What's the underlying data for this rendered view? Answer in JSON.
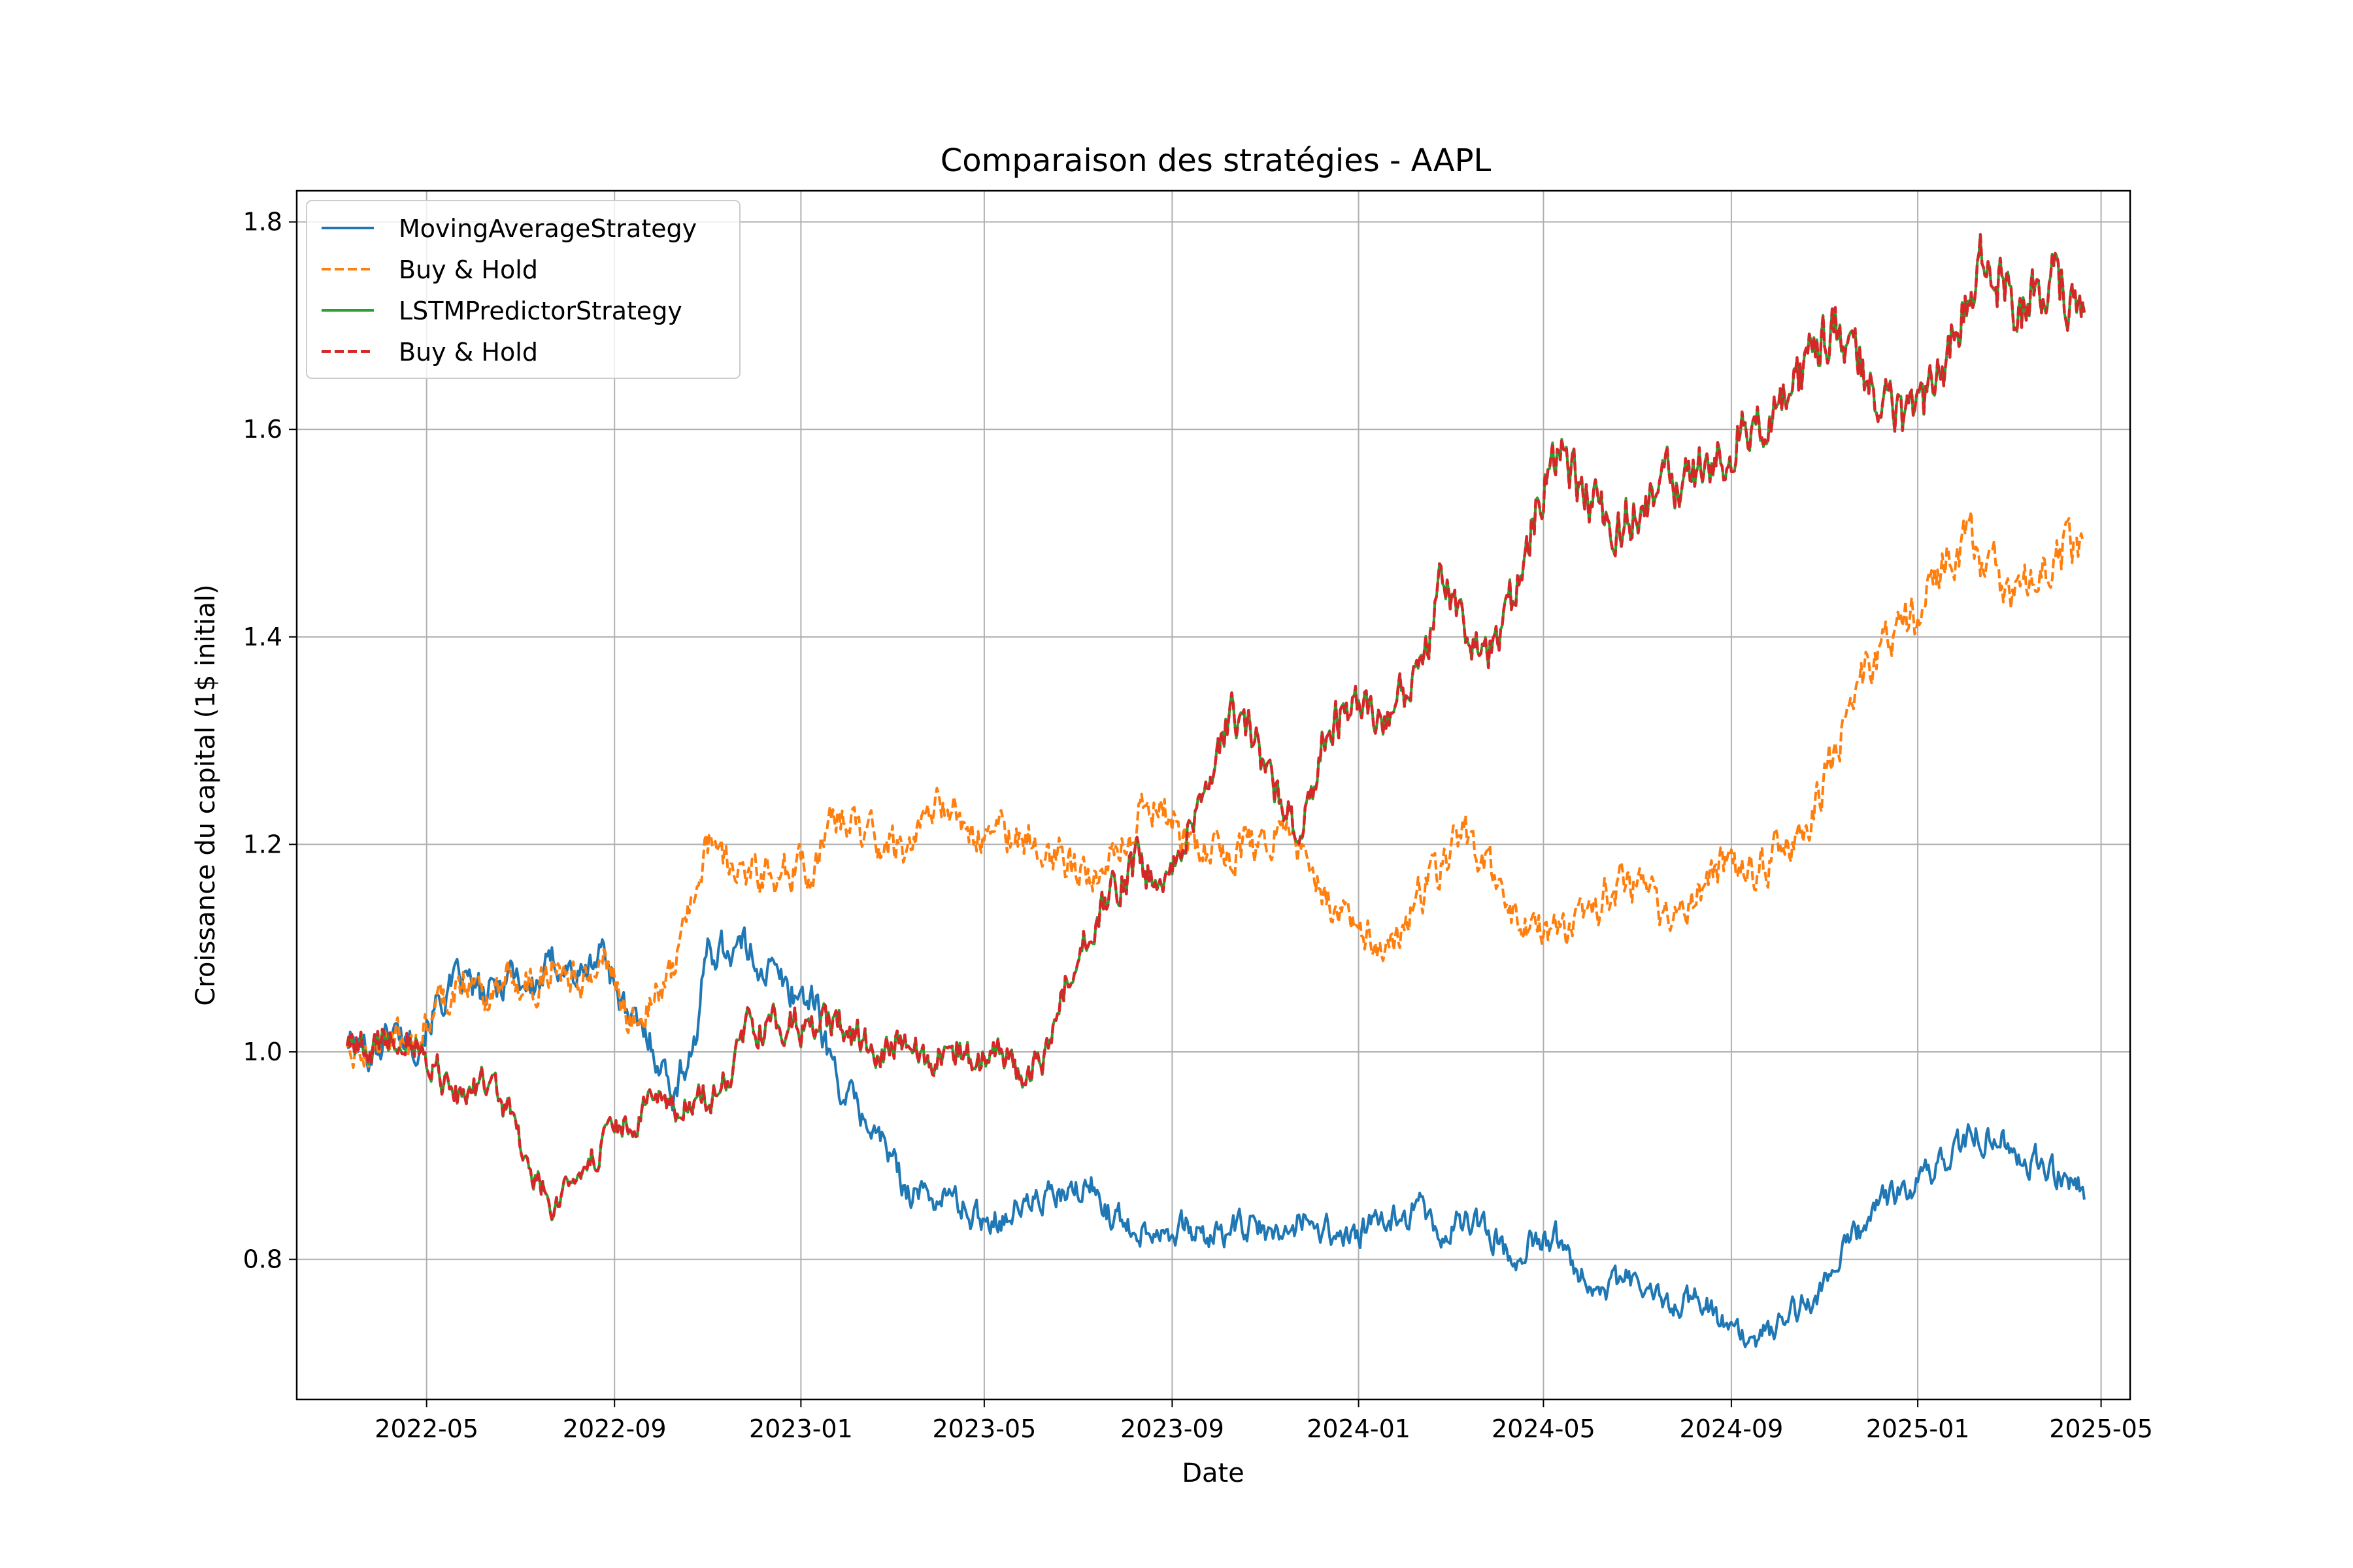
{
  "chart_data": {
    "type": "line",
    "title": "Comparaison des stratégies - AAPL",
    "xlabel": "Date",
    "ylabel": "Croissance du capital (1$ initial)",
    "x_ticks": [
      "2022-05",
      "2022-09",
      "2023-01",
      "2023-05",
      "2023-09",
      "2024-01",
      "2024-05",
      "2024-09",
      "2025-01",
      "2025-05"
    ],
    "y_ticks": [
      0.8,
      1.0,
      1.2,
      1.4,
      1.6,
      1.8
    ],
    "xlim": [
      "2022-02-05",
      "2025-05-20"
    ],
    "ylim": [
      0.665,
      1.83
    ],
    "grid": true,
    "legend_position": "upper-left",
    "series": [
      {
        "name": "MovingAverageStrategy",
        "color": "#1f77b4",
        "style": "solid",
        "x": [
          "2022-03-10",
          "2022-03-25",
          "2022-04-10",
          "2022-04-25",
          "2022-05-10",
          "2022-05-25",
          "2022-06-10",
          "2022-06-25",
          "2022-07-10",
          "2022-07-25",
          "2022-08-10",
          "2022-08-25",
          "2022-09-10",
          "2022-09-25",
          "2022-10-10",
          "2022-10-25",
          "2022-11-01",
          "2022-11-10",
          "2022-11-25",
          "2022-12-10",
          "2022-12-25",
          "2023-01-10",
          "2023-01-25",
          "2023-02-10",
          "2023-02-25",
          "2023-03-10",
          "2023-03-25",
          "2023-04-10",
          "2023-04-25",
          "2023-05-10",
          "2023-05-25",
          "2023-06-10",
          "2023-06-25",
          "2023-07-10",
          "2023-07-25",
          "2023-08-10",
          "2023-08-25",
          "2023-09-10",
          "2023-09-25",
          "2023-10-10",
          "2023-10-25",
          "2023-11-10",
          "2023-11-25",
          "2023-12-10",
          "2023-12-25",
          "2024-01-10",
          "2024-01-25",
          "2024-02-10",
          "2024-02-25",
          "2024-03-10",
          "2024-03-25",
          "2024-04-10",
          "2024-04-25",
          "2024-05-10",
          "2024-05-25",
          "2024-06-10",
          "2024-06-25",
          "2024-07-10",
          "2024-07-25",
          "2024-08-10",
          "2024-08-25",
          "2024-09-10",
          "2024-09-25",
          "2024-10-10",
          "2024-10-25",
          "2024-11-10",
          "2024-11-25",
          "2024-12-10",
          "2024-12-25",
          "2025-01-10",
          "2025-01-25",
          "2025-02-10",
          "2025-02-25",
          "2025-03-10",
          "2025-03-25",
          "2025-04-10",
          "2025-04-20"
        ],
        "y": [
          1.01,
          1.0,
          1.02,
          1.01,
          1.05,
          1.07,
          1.05,
          1.08,
          1.06,
          1.09,
          1.07,
          1.1,
          1.03,
          1.01,
          0.96,
          1.02,
          1.1,
          1.1,
          1.1,
          1.08,
          1.06,
          1.05,
          0.97,
          0.94,
          0.91,
          0.87,
          0.86,
          0.86,
          0.84,
          0.84,
          0.85,
          0.86,
          0.86,
          0.87,
          0.84,
          0.83,
          0.83,
          0.83,
          0.82,
          0.83,
          0.83,
          0.82,
          0.84,
          0.83,
          0.82,
          0.83,
          0.84,
          0.85,
          0.82,
          0.84,
          0.83,
          0.8,
          0.82,
          0.82,
          0.79,
          0.77,
          0.78,
          0.77,
          0.75,
          0.77,
          0.74,
          0.72,
          0.73,
          0.75,
          0.76,
          0.8,
          0.83,
          0.86,
          0.87,
          0.88,
          0.91,
          0.92,
          0.92,
          0.9,
          0.89,
          0.88,
          0.87
        ]
      },
      {
        "name": "Buy & Hold",
        "color": "#ff7f0e",
        "style": "dashed",
        "x": [
          "2022-03-10",
          "2022-03-25",
          "2022-04-10",
          "2022-04-25",
          "2022-05-10",
          "2022-05-25",
          "2022-06-10",
          "2022-06-25",
          "2022-07-10",
          "2022-07-25",
          "2022-08-10",
          "2022-08-25",
          "2022-09-10",
          "2022-09-25",
          "2022-10-10",
          "2022-10-25",
          "2022-11-01",
          "2022-11-10",
          "2022-11-25",
          "2022-12-10",
          "2022-12-25",
          "2023-01-10",
          "2023-01-25",
          "2023-02-10",
          "2023-02-25",
          "2023-03-10",
          "2023-03-25",
          "2023-04-10",
          "2023-04-25",
          "2023-05-10",
          "2023-05-25",
          "2023-06-10",
          "2023-06-25",
          "2023-07-10",
          "2023-07-25",
          "2023-08-10",
          "2023-08-25",
          "2023-09-10",
          "2023-09-25",
          "2023-10-10",
          "2023-10-25",
          "2023-11-10",
          "2023-11-25",
          "2023-12-10",
          "2023-12-25",
          "2024-01-10",
          "2024-01-25",
          "2024-02-10",
          "2024-02-25",
          "2024-03-10",
          "2024-03-25",
          "2024-04-10",
          "2024-04-25",
          "2024-05-10",
          "2024-05-25",
          "2024-06-10",
          "2024-06-25",
          "2024-07-10",
          "2024-07-25",
          "2024-08-10",
          "2024-08-25",
          "2024-09-10",
          "2024-09-25",
          "2024-10-10",
          "2024-10-25",
          "2024-11-10",
          "2024-11-25",
          "2024-12-10",
          "2024-12-25",
          "2025-01-10",
          "2025-01-25",
          "2025-02-10",
          "2025-02-25",
          "2025-03-10",
          "2025-03-25",
          "2025-04-10",
          "2025-04-20"
        ],
        "y": [
          1.01,
          1.0,
          1.02,
          1.01,
          1.05,
          1.07,
          1.05,
          1.08,
          1.06,
          1.09,
          1.07,
          1.1,
          1.03,
          1.05,
          1.08,
          1.17,
          1.2,
          1.19,
          1.18,
          1.17,
          1.18,
          1.18,
          1.23,
          1.21,
          1.2,
          1.19,
          1.23,
          1.24,
          1.2,
          1.21,
          1.21,
          1.2,
          1.18,
          1.16,
          1.2,
          1.23,
          1.23,
          1.21,
          1.19,
          1.19,
          1.2,
          1.21,
          1.19,
          1.14,
          1.13,
          1.11,
          1.1,
          1.15,
          1.18,
          1.21,
          1.18,
          1.13,
          1.12,
          1.11,
          1.12,
          1.15,
          1.17,
          1.15,
          1.12,
          1.15,
          1.18,
          1.17,
          1.18,
          1.2,
          1.23,
          1.3,
          1.36,
          1.4,
          1.41,
          1.44,
          1.49,
          1.48,
          1.45,
          1.44,
          1.46,
          1.49,
          1.48
        ]
      },
      {
        "name": "LSTMPredictorStrategy",
        "color": "#2ca02c",
        "style": "solid",
        "x": [
          "2022-03-10",
          "2022-03-25",
          "2022-04-10",
          "2022-04-25",
          "2022-05-01",
          "2022-05-10",
          "2022-05-25",
          "2022-06-10",
          "2022-06-25",
          "2022-07-10",
          "2022-07-25",
          "2022-08-10",
          "2022-08-25",
          "2022-09-10",
          "2022-09-25",
          "2022-10-10",
          "2022-10-25",
          "2022-11-10",
          "2022-11-25",
          "2022-12-10",
          "2022-12-25",
          "2023-01-10",
          "2023-01-25",
          "2023-02-10",
          "2023-02-25",
          "2023-03-10",
          "2023-03-25",
          "2023-04-10",
          "2023-04-25",
          "2023-05-10",
          "2023-05-25",
          "2023-06-10",
          "2023-06-25",
          "2023-07-10",
          "2023-07-25",
          "2023-08-10",
          "2023-08-25",
          "2023-09-10",
          "2023-09-25",
          "2023-10-10",
          "2023-10-25",
          "2023-11-10",
          "2023-11-25",
          "2023-12-10",
          "2023-12-25",
          "2024-01-10",
          "2024-01-25",
          "2024-02-10",
          "2024-02-25",
          "2024-03-10",
          "2024-03-25",
          "2024-04-10",
          "2024-04-25",
          "2024-05-10",
          "2024-05-25",
          "2024-06-10",
          "2024-06-25",
          "2024-07-10",
          "2024-07-25",
          "2024-08-10",
          "2024-08-25",
          "2024-09-10",
          "2024-09-25",
          "2024-10-10",
          "2024-10-25",
          "2024-11-10",
          "2024-11-25",
          "2024-12-10",
          "2024-12-25",
          "2025-01-10",
          "2025-01-25",
          "2025-02-10",
          "2025-02-25",
          "2025-03-10",
          "2025-03-25",
          "2025-04-10",
          "2025-04-20"
        ],
        "y": [
          1.01,
          1.0,
          1.02,
          1.01,
          0.99,
          0.98,
          0.95,
          0.97,
          0.94,
          0.88,
          0.85,
          0.89,
          0.91,
          0.93,
          0.95,
          0.94,
          0.96,
          0.96,
          1.02,
          1.03,
          1.03,
          1.02,
          1.03,
          1.01,
          1.0,
          1.02,
          0.99,
          1.01,
          0.99,
          1.0,
          0.98,
          0.99,
          1.08,
          1.12,
          1.16,
          1.18,
          1.16,
          1.22,
          1.24,
          1.33,
          1.3,
          1.24,
          1.21,
          1.31,
          1.33,
          1.32,
          1.33,
          1.37,
          1.45,
          1.41,
          1.39,
          1.43,
          1.52,
          1.58,
          1.54,
          1.51,
          1.52,
          1.53,
          1.55,
          1.56,
          1.57,
          1.61,
          1.6,
          1.63,
          1.67,
          1.7,
          1.66,
          1.63,
          1.6,
          1.63,
          1.69,
          1.76,
          1.74,
          1.71,
          1.75,
          1.73,
          1.73
        ]
      },
      {
        "name": "Buy & Hold",
        "color": "#d62728",
        "style": "dashed",
        "x": [
          "2022-03-10",
          "2022-03-25",
          "2022-04-10",
          "2022-04-25",
          "2022-05-01",
          "2022-05-10",
          "2022-05-25",
          "2022-06-10",
          "2022-06-25",
          "2022-07-10",
          "2022-07-25",
          "2022-08-10",
          "2022-08-25",
          "2022-09-10",
          "2022-09-25",
          "2022-10-10",
          "2022-10-25",
          "2022-11-10",
          "2022-11-25",
          "2022-12-10",
          "2022-12-25",
          "2023-01-10",
          "2023-01-25",
          "2023-02-10",
          "2023-02-25",
          "2023-03-10",
          "2023-03-25",
          "2023-04-10",
          "2023-04-25",
          "2023-05-10",
          "2023-05-25",
          "2023-06-10",
          "2023-06-25",
          "2023-07-10",
          "2023-07-25",
          "2023-08-10",
          "2023-08-25",
          "2023-09-10",
          "2023-09-25",
          "2023-10-10",
          "2023-10-25",
          "2023-11-10",
          "2023-11-25",
          "2023-12-10",
          "2023-12-25",
          "2024-01-10",
          "2024-01-25",
          "2024-02-10",
          "2024-02-25",
          "2024-03-10",
          "2024-03-25",
          "2024-04-10",
          "2024-04-25",
          "2024-05-10",
          "2024-05-25",
          "2024-06-10",
          "2024-06-25",
          "2024-07-10",
          "2024-07-25",
          "2024-08-10",
          "2024-08-25",
          "2024-09-10",
          "2024-09-25",
          "2024-10-10",
          "2024-10-25",
          "2024-11-10",
          "2024-11-25",
          "2024-12-10",
          "2024-12-25",
          "2025-01-10",
          "2025-01-25",
          "2025-02-10",
          "2025-02-25",
          "2025-03-10",
          "2025-03-25",
          "2025-04-10",
          "2025-04-20"
        ],
        "y": [
          1.01,
          1.0,
          1.02,
          1.01,
          0.99,
          0.98,
          0.95,
          0.97,
          0.94,
          0.88,
          0.85,
          0.89,
          0.91,
          0.93,
          0.95,
          0.94,
          0.96,
          0.96,
          1.02,
          1.03,
          1.03,
          1.02,
          1.03,
          1.01,
          1.0,
          1.02,
          0.99,
          1.01,
          0.99,
          1.0,
          0.98,
          0.99,
          1.08,
          1.12,
          1.16,
          1.18,
          1.16,
          1.22,
          1.24,
          1.33,
          1.3,
          1.24,
          1.21,
          1.31,
          1.33,
          1.32,
          1.33,
          1.37,
          1.45,
          1.41,
          1.39,
          1.43,
          1.52,
          1.58,
          1.54,
          1.51,
          1.52,
          1.53,
          1.55,
          1.56,
          1.57,
          1.61,
          1.6,
          1.63,
          1.67,
          1.7,
          1.66,
          1.63,
          1.6,
          1.63,
          1.69,
          1.76,
          1.74,
          1.71,
          1.75,
          1.73,
          1.73
        ]
      }
    ]
  }
}
